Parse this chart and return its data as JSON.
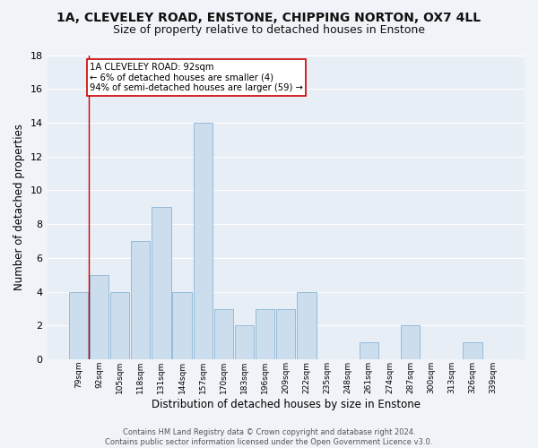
{
  "title": "1A, CLEVELEY ROAD, ENSTONE, CHIPPING NORTON, OX7 4LL",
  "subtitle": "Size of property relative to detached houses in Enstone",
  "xlabel": "Distribution of detached houses by size in Enstone",
  "ylabel": "Number of detached properties",
  "bin_labels": [
    "79sqm",
    "92sqm",
    "105sqm",
    "118sqm",
    "131sqm",
    "144sqm",
    "157sqm",
    "170sqm",
    "183sqm",
    "196sqm",
    "209sqm",
    "222sqm",
    "235sqm",
    "248sqm",
    "261sqm",
    "274sqm",
    "287sqm",
    "300sqm",
    "313sqm",
    "326sqm",
    "339sqm"
  ],
  "bar_values": [
    4,
    5,
    4,
    7,
    9,
    4,
    14,
    3,
    2,
    3,
    3,
    4,
    0,
    0,
    1,
    0,
    2,
    0,
    0,
    1,
    0
  ],
  "bar_color": "#ccdded",
  "bar_edgecolor": "#8ab4d4",
  "background_color": "#e8eef6",
  "grid_color": "#ffffff",
  "annotation_text": "1A CLEVELEY ROAD: 92sqm\n← 6% of detached houses are smaller (4)\n94% of semi-detached houses are larger (59) →",
  "annotation_box_color": "#ffffff",
  "annotation_box_edgecolor": "#cc0000",
  "vline_color": "#cc0000",
  "ylim": [
    0,
    18
  ],
  "yticks": [
    0,
    2,
    4,
    6,
    8,
    10,
    12,
    14,
    16,
    18
  ],
  "footer_text": "Contains HM Land Registry data © Crown copyright and database right 2024.\nContains public sector information licensed under the Open Government Licence v3.0.",
  "title_fontsize": 10,
  "subtitle_fontsize": 9,
  "xlabel_fontsize": 8.5,
  "ylabel_fontsize": 8.5,
  "fig_bg": "#f0f4f8"
}
